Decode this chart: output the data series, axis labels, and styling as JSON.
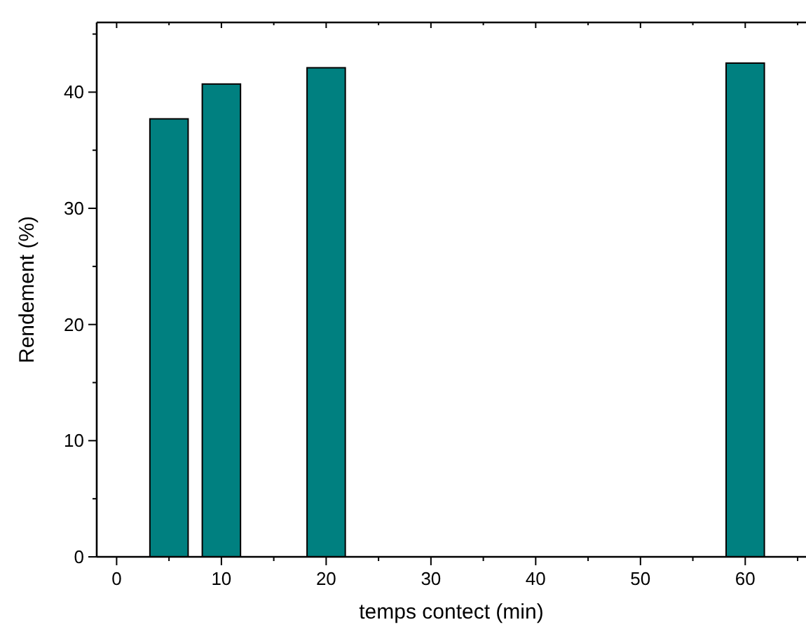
{
  "chart_data": {
    "type": "bar",
    "xlabel": "temps contect (min)",
    "ylabel": "Rendement (%)",
    "x": [
      5,
      10,
      20,
      60
    ],
    "values": [
      37.7,
      40.7,
      42.1,
      42.5
    ],
    "color": "#008080",
    "xlim": [
      -1.9,
      65.8
    ],
    "xticks": [
      0,
      {
        "value": 5,
        "label": null
      },
      10,
      {
        "value": 15,
        "label": null
      },
      20,
      {
        "value": 25,
        "label": null
      },
      30,
      {
        "value": 35,
        "label": null
      },
      40,
      {
        "value": 45,
        "label": null
      },
      50,
      {
        "value": 55,
        "label": null
      },
      60,
      {
        "value": 65,
        "label": null
      }
    ],
    "ylim": [
      0,
      46
    ],
    "yticks": [
      0,
      {
        "value": 5,
        "label": null
      },
      10,
      {
        "value": 15,
        "label": null
      },
      20,
      {
        "value": 25,
        "label": null
      },
      30,
      {
        "value": 35,
        "label": null
      },
      40,
      {
        "value": 45,
        "label": null
      }
    ],
    "grid": false
  }
}
